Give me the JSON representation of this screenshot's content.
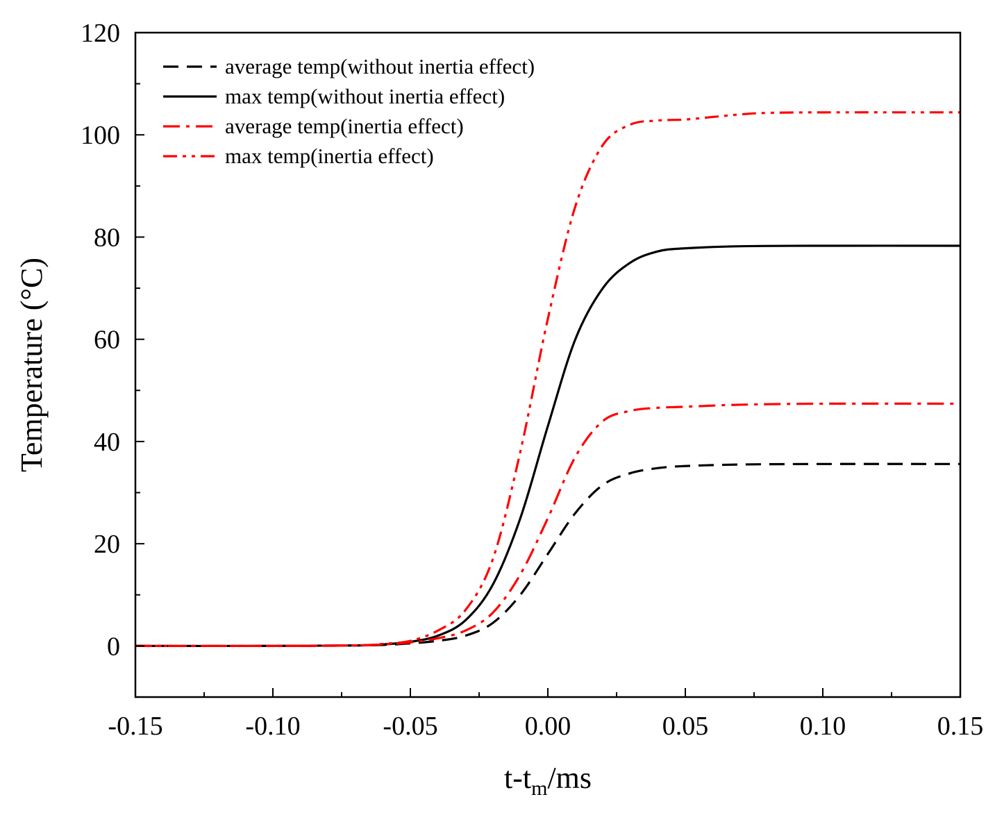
{
  "chart_data": {
    "type": "line",
    "title": "",
    "xlabel": {
      "main": "t-t",
      "sub": "m",
      "suffix": "/ms"
    },
    "ylabel": "Temperature (°C)",
    "xlim": [
      -0.15,
      0.15
    ],
    "ylim": [
      -10,
      120
    ],
    "xticks": [
      -0.15,
      -0.1,
      -0.05,
      0.0,
      0.05,
      0.1,
      0.15
    ],
    "xtick_labels": [
      "-0.15",
      "-0.10",
      "-0.05",
      "0.00",
      "0.05",
      "0.10",
      "0.15"
    ],
    "yticks": [
      0,
      20,
      40,
      60,
      80,
      100,
      120
    ],
    "ytick_labels": [
      "0",
      "20",
      "40",
      "60",
      "80",
      "100",
      "120"
    ],
    "xminor_step": 0.025,
    "yminor_step": 10,
    "grid": false,
    "legend_position": "top-left",
    "series": [
      {
        "name": "average temp(without inertia effect)",
        "color": "#000000",
        "dash": "dash",
        "x": [
          -0.15,
          -0.1,
          -0.07,
          -0.06,
          -0.05,
          -0.04,
          -0.03,
          -0.02,
          -0.01,
          0.0,
          0.01,
          0.02,
          0.03,
          0.04,
          0.05,
          0.07,
          0.1,
          0.15
        ],
        "y": [
          0,
          0,
          0.1,
          0.2,
          0.5,
          1.0,
          2.0,
          4.5,
          10.0,
          18.0,
          26.0,
          31.5,
          33.8,
          34.8,
          35.2,
          35.5,
          35.6,
          35.6
        ]
      },
      {
        "name": "max temp(without inertia effect)",
        "color": "#000000",
        "dash": "solid",
        "x": [
          -0.15,
          -0.1,
          -0.07,
          -0.06,
          -0.05,
          -0.04,
          -0.03,
          -0.02,
          -0.01,
          0.0,
          0.01,
          0.02,
          0.03,
          0.04,
          0.05,
          0.07,
          0.1,
          0.15
        ],
        "y": [
          0,
          0,
          0.1,
          0.3,
          0.8,
          2.0,
          5.0,
          12.0,
          25.0,
          43.0,
          60.0,
          70.0,
          75.0,
          77.2,
          77.8,
          78.2,
          78.3,
          78.3
        ]
      },
      {
        "name": "average temp(inertia effect)",
        "color": "#ff0000",
        "dash": "dashdot",
        "x": [
          -0.15,
          -0.1,
          -0.07,
          -0.06,
          -0.05,
          -0.04,
          -0.03,
          -0.02,
          -0.01,
          0.0,
          0.01,
          0.02,
          0.03,
          0.04,
          0.05,
          0.07,
          0.1,
          0.15
        ],
        "y": [
          0,
          0,
          0.1,
          0.3,
          0.7,
          1.5,
          3.0,
          6.5,
          14.0,
          25.0,
          37.0,
          44.0,
          46.0,
          46.6,
          46.8,
          47.2,
          47.4,
          47.4
        ]
      },
      {
        "name": "max temp(inertia effect)",
        "color": "#ff0000",
        "dash": "dashdotdot",
        "x": [
          -0.15,
          -0.1,
          -0.07,
          -0.06,
          -0.05,
          -0.04,
          -0.03,
          -0.02,
          -0.01,
          0.0,
          0.01,
          0.02,
          0.03,
          0.04,
          0.05,
          0.06,
          0.07,
          0.08,
          0.1,
          0.15
        ],
        "y": [
          0,
          0,
          0.1,
          0.4,
          1.0,
          3.0,
          7.0,
          17.0,
          38.0,
          64.0,
          86.0,
          98.0,
          102.0,
          102.8,
          103.0,
          103.5,
          104.0,
          104.3,
          104.4,
          104.4
        ]
      }
    ]
  }
}
